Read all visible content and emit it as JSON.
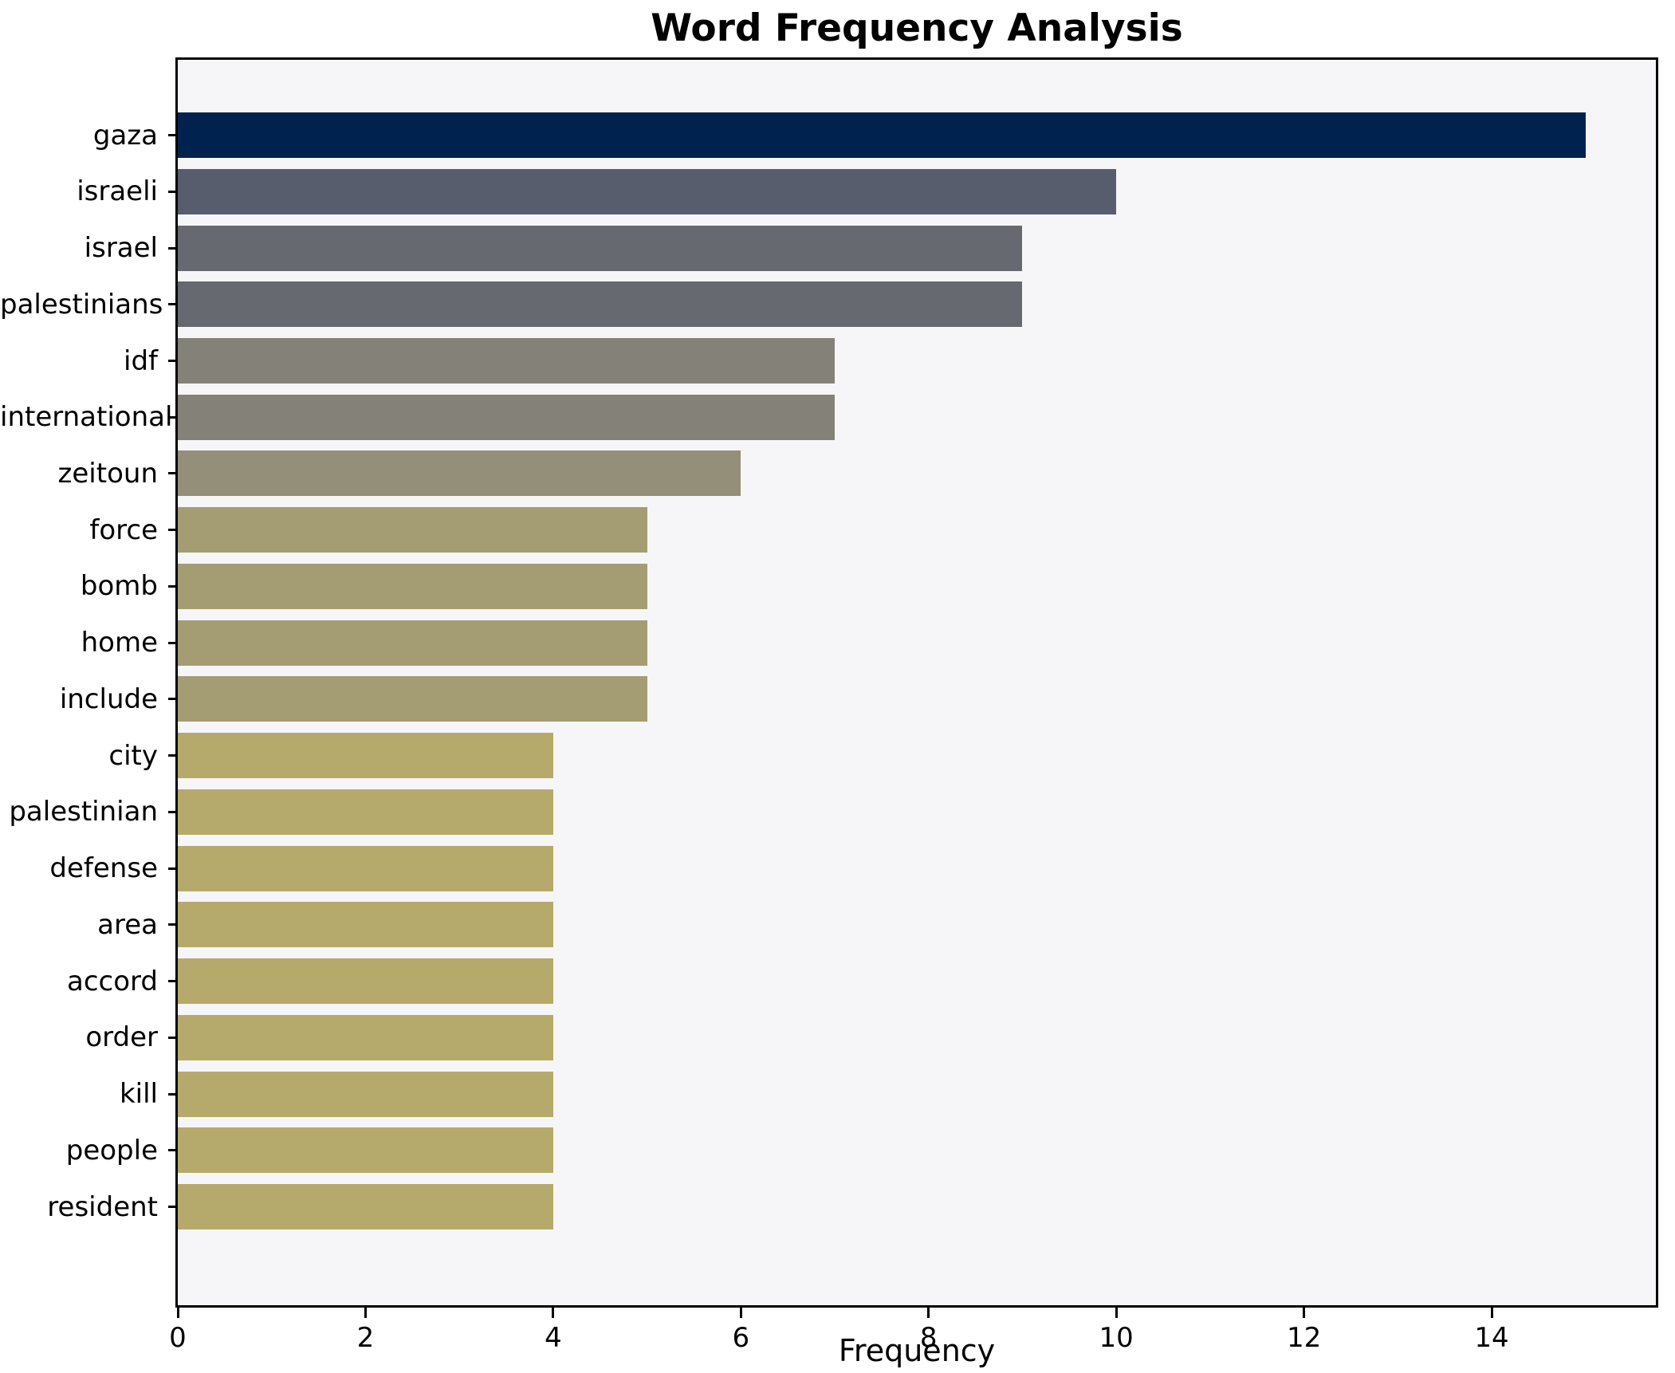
{
  "title": "Word Frequency Analysis",
  "xlabel": "Frequency",
  "chart_data": {
    "type": "bar",
    "orientation": "horizontal",
    "title": "Word Frequency Analysis",
    "xlabel": "Frequency",
    "ylabel": "",
    "categories": [
      "gaza",
      "israeli",
      "israel",
      "palestinians",
      "idf",
      "international",
      "zeitoun",
      "force",
      "bomb",
      "home",
      "include",
      "city",
      "palestinian",
      "defense",
      "area",
      "accord",
      "order",
      "kill",
      "people",
      "resident"
    ],
    "values": [
      15,
      10,
      9,
      9,
      7,
      7,
      6,
      5,
      5,
      5,
      5,
      4,
      4,
      4,
      4,
      4,
      4,
      4,
      4,
      4
    ],
    "bar_colors": [
      "#00224e",
      "#575d6d",
      "#666970",
      "#666970",
      "#848278",
      "#848278",
      "#938f78",
      "#a49d73",
      "#a49d73",
      "#a49d73",
      "#a49d73",
      "#b5aa6c",
      "#b5aa6c",
      "#b5aa6c",
      "#b5aa6c",
      "#b5aa6c",
      "#b5aa6c",
      "#b5aa6c",
      "#b5aa6c",
      "#b5aa6c"
    ],
    "xlim": [
      0,
      15.75
    ],
    "xticks": [
      0,
      2,
      4,
      6,
      8,
      10,
      12,
      14
    ],
    "grid": false,
    "legend": null,
    "plot_background": "#f6f6f8",
    "figure_background": "#ffffff",
    "colormap": "cividis"
  }
}
